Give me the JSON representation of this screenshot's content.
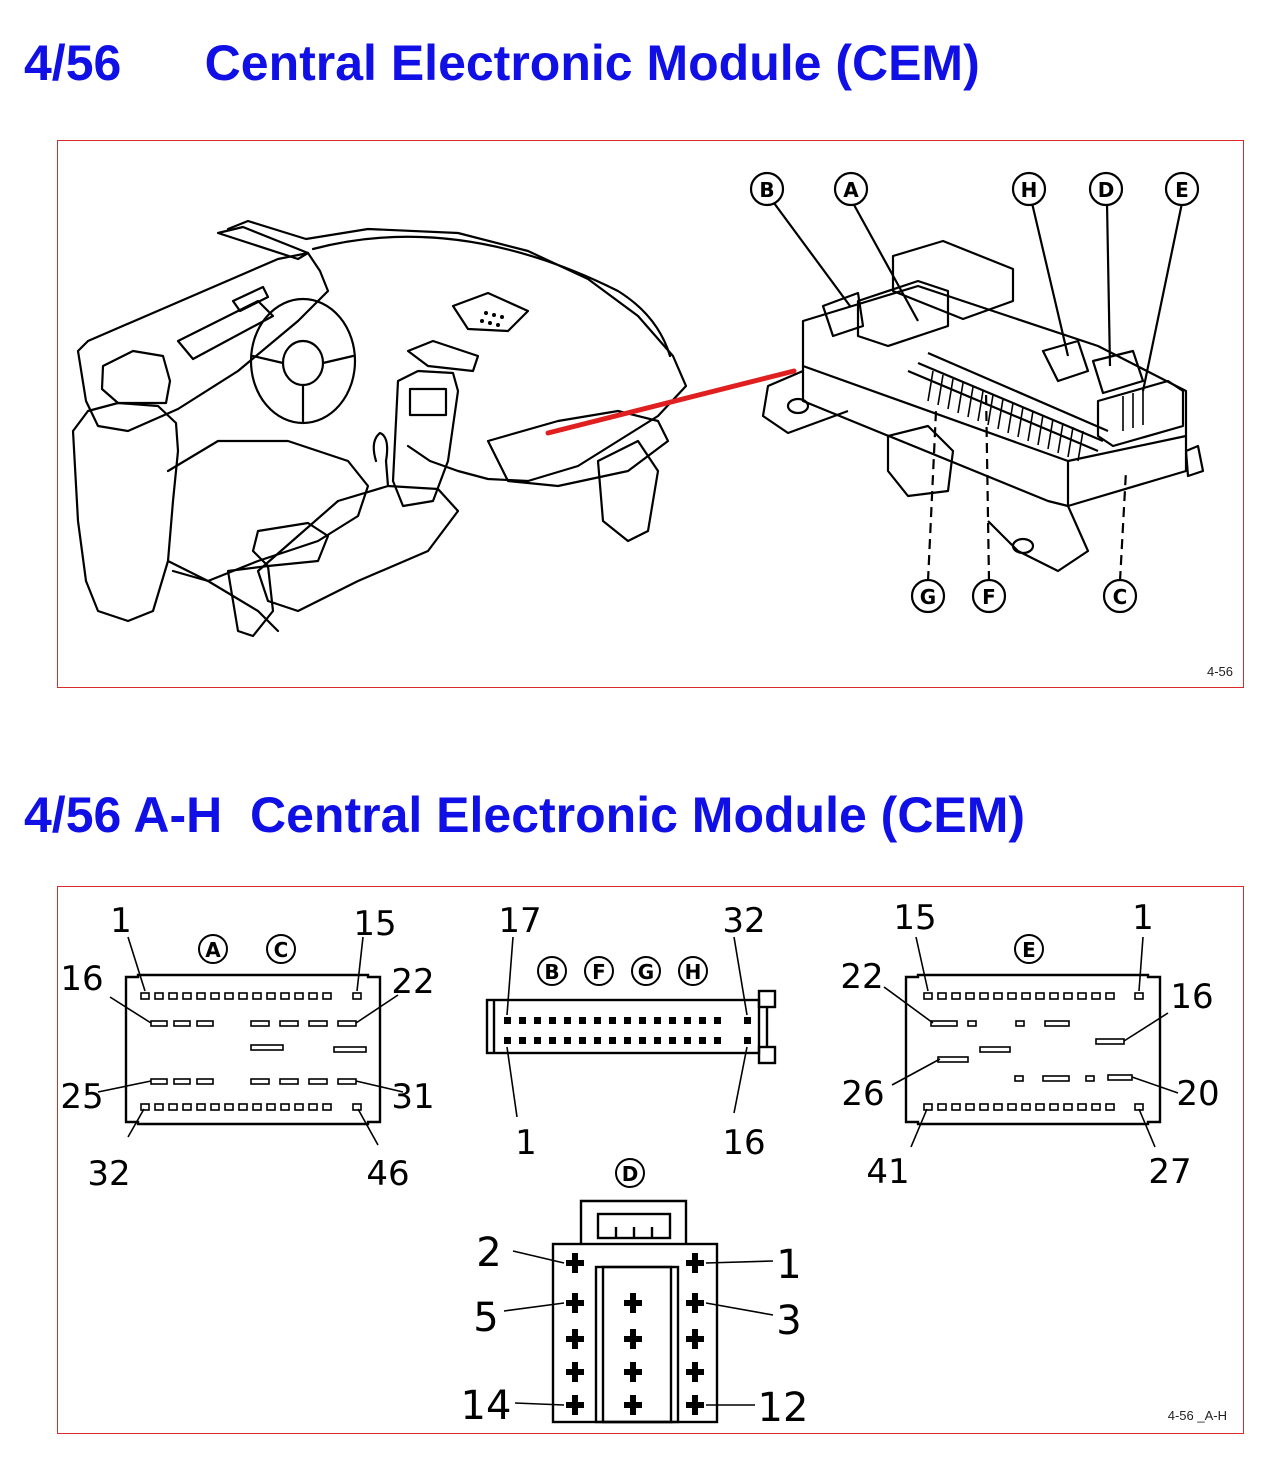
{
  "page": {
    "heading_top": "4/56      Central Electronic Module (CEM)",
    "heading_bottom": "4/56 A-H  Central Electronic Module (CEM)"
  },
  "colors": {
    "heading": "#1010e6",
    "frame": "#d92b2b",
    "pointer": "#e02020",
    "line": "#000000"
  },
  "overview": {
    "figure_label": "4-56",
    "callouts_top": [
      "B",
      "A",
      "H",
      "D",
      "E"
    ],
    "callouts_bottom": [
      "G",
      "F",
      "C"
    ]
  },
  "pinouts": {
    "figure_label": "4-56 _A-H",
    "connector_ac": {
      "letters": [
        "A",
        "C"
      ],
      "pins": {
        "tl": "1",
        "tr": "15",
        "l2": "16",
        "r2": "22",
        "l3": "25",
        "r3": "31",
        "bl": "32",
        "br": "46"
      }
    },
    "connector_bfgh": {
      "letters": [
        "B",
        "F",
        "G",
        "H"
      ],
      "pins": {
        "tl": "17",
        "tr": "32",
        "bl": "1",
        "br": "16"
      }
    },
    "connector_e": {
      "letters": [
        "E"
      ],
      "pins": {
        "tl": "15",
        "tr": "1",
        "l2": "22",
        "r2": "16",
        "l3": "26",
        "r3": "20",
        "bl": "41",
        "br": "27"
      }
    },
    "connector_d": {
      "letters": [
        "D"
      ],
      "pins": {
        "l1": "2",
        "r1": "1",
        "l2": "5",
        "r2": "3",
        "l3": "14",
        "r3": "12"
      }
    }
  }
}
